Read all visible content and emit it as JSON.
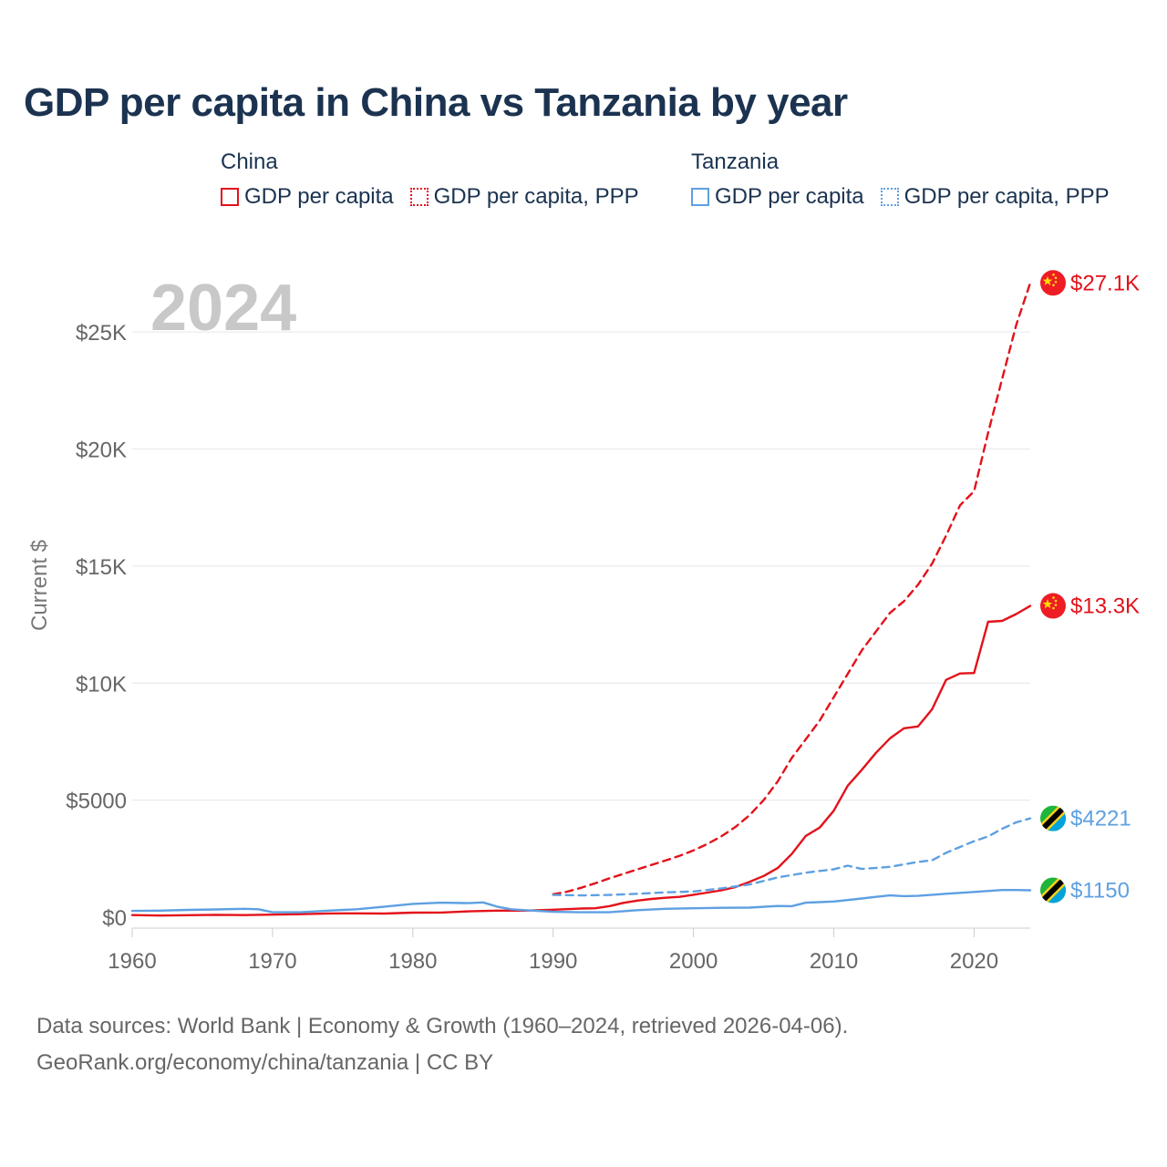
{
  "title": "GDP per capita in China vs Tanzania by year",
  "legend": {
    "china": {
      "title": "China",
      "color": "#e3121b",
      "items": [
        {
          "label": "GDP per capita",
          "style": "solid"
        },
        {
          "label": "GDP per capita, PPP",
          "style": "dotted"
        }
      ]
    },
    "tanzania": {
      "title": "Tanzania",
      "color": "#5ea0e2",
      "items": [
        {
          "label": "GDP per capita",
          "style": "solid"
        },
        {
          "label": "GDP per capita, PPP",
          "style": "dotted"
        }
      ]
    }
  },
  "chart_data": {
    "type": "line",
    "year_label": "2024",
    "ylabel": "Current $",
    "xlim": [
      1960,
      2024
    ],
    "ylim": [
      0,
      27500
    ],
    "x_ticks": [
      1960,
      1970,
      1980,
      1990,
      2000,
      2010,
      2020
    ],
    "y_ticks": [
      {
        "value": 0,
        "label": "$0"
      },
      {
        "value": 5000,
        "label": "$5000"
      },
      {
        "value": 10000,
        "label": "$10K"
      },
      {
        "value": 15000,
        "label": "$15K"
      },
      {
        "value": 20000,
        "label": "$20K"
      },
      {
        "value": 25000,
        "label": "$25K"
      }
    ],
    "grid": true,
    "series": [
      {
        "name": "China GDP per capita",
        "country": "china",
        "color": "#e3121b",
        "dashed": false,
        "end_label": "$13.3K",
        "x": [
          1960,
          1962,
          1964,
          1966,
          1968,
          1970,
          1972,
          1974,
          1976,
          1978,
          1980,
          1982,
          1984,
          1986,
          1988,
          1990,
          1992,
          1993,
          1994,
          1995,
          1996,
          1997,
          1998,
          1999,
          2000,
          2001,
          2002,
          2003,
          2004,
          2005,
          2006,
          2007,
          2008,
          2009,
          2010,
          2011,
          2012,
          2013,
          2014,
          2015,
          2016,
          2017,
          2018,
          2019,
          2020,
          2021,
          2022,
          2023,
          2024
        ],
        "values": [
          90,
          70,
          85,
          100,
          90,
          110,
          130,
          160,
          165,
          155,
          195,
          200,
          250,
          280,
          280,
          320,
          370,
          380,
          470,
          610,
          710,
          780,
          830,
          870,
          960,
          1050,
          1150,
          1290,
          1510,
          1760,
          2100,
          2700,
          3470,
          3830,
          4550,
          5620,
          6300,
          7020,
          7640,
          8070,
          8150,
          8880,
          10140,
          10410,
          10430,
          12620,
          12660,
          12950,
          13300
        ]
      },
      {
        "name": "China GDP per capita, PPP",
        "country": "china",
        "color": "#e3121b",
        "dashed": true,
        "end_label": "$27.1K",
        "x": [
          1990,
          1991,
          1992,
          1993,
          1994,
          1995,
          1996,
          1997,
          1998,
          1999,
          2000,
          2001,
          2002,
          2003,
          2004,
          2005,
          2006,
          2007,
          2008,
          2009,
          2010,
          2011,
          2012,
          2013,
          2014,
          2015,
          2016,
          2017,
          2018,
          2019,
          2020,
          2021,
          2022,
          2023,
          2024
        ],
        "values": [
          980,
          1090,
          1260,
          1450,
          1660,
          1850,
          2040,
          2230,
          2420,
          2620,
          2850,
          3130,
          3460,
          3860,
          4360,
          5000,
          5800,
          6800,
          7600,
          8400,
          9400,
          10400,
          11400,
          12200,
          13000,
          13500,
          14200,
          15100,
          16300,
          17600,
          18200,
          20700,
          23000,
          25300,
          27100
        ]
      },
      {
        "name": "Tanzania GDP per capita",
        "country": "tanzania",
        "color": "#5ea0e2",
        "dashed": false,
        "end_label": "$1150",
        "x": [
          1960,
          1962,
          1964,
          1966,
          1968,
          1969,
          1970,
          1972,
          1974,
          1976,
          1978,
          1980,
          1982,
          1984,
          1985,
          1986,
          1987,
          1988,
          1990,
          1992,
          1994,
          1996,
          1998,
          2000,
          2002,
          2004,
          2006,
          2007,
          2008,
          2010,
          2012,
          2013,
          2014,
          2015,
          2016,
          2018,
          2020,
          2022,
          2023,
          2024
        ],
        "values": [
          270,
          280,
          310,
          330,
          360,
          340,
          210,
          210,
          280,
          340,
          450,
          570,
          620,
          600,
          630,
          450,
          340,
          300,
          230,
          210,
          210,
          300,
          360,
          380,
          400,
          410,
          480,
          470,
          620,
          670,
          800,
          870,
          930,
          900,
          910,
          1000,
          1080,
          1160,
          1160,
          1150
        ]
      },
      {
        "name": "Tanzania GDP per capita, PPP",
        "country": "tanzania",
        "color": "#5ea0e2",
        "dashed": true,
        "end_label": "$4221",
        "x": [
          1990,
          1992,
          1994,
          1996,
          1998,
          2000,
          2002,
          2004,
          2006,
          2008,
          2010,
          2011,
          2012,
          2014,
          2016,
          2017,
          2018,
          2019,
          2020,
          2021,
          2022,
          2023,
          2024
        ],
        "values": [
          950,
          930,
          950,
          1000,
          1060,
          1100,
          1230,
          1400,
          1700,
          1900,
          2050,
          2200,
          2060,
          2150,
          2360,
          2430,
          2750,
          3000,
          3250,
          3450,
          3780,
          4050,
          4221
        ]
      }
    ]
  },
  "footer": {
    "line1": "Data sources: World Bank | Economy & Growth (1960–2024, retrieved 2026-04-06).",
    "line2": "GeoRank.org/economy/china/tanzania | CC BY"
  }
}
